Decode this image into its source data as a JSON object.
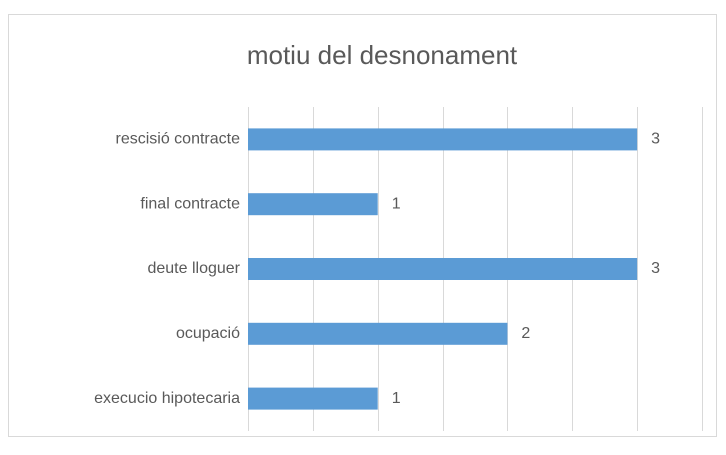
{
  "chart_data": {
    "type": "bar",
    "orientation": "horizontal",
    "title": "motiu del desnonament",
    "categories": [
      "rescisió contracte",
      "final contracte",
      "deute lloguer",
      "ocupació",
      "execucio hipotecaria"
    ],
    "values": [
      3,
      1,
      3,
      2,
      1
    ],
    "color": "#5b9bd5",
    "xlim": [
      0,
      3.5
    ],
    "xticks": [
      0,
      0.5,
      1,
      1.5,
      2,
      2.5,
      3,
      3.5
    ],
    "grid": true
  }
}
